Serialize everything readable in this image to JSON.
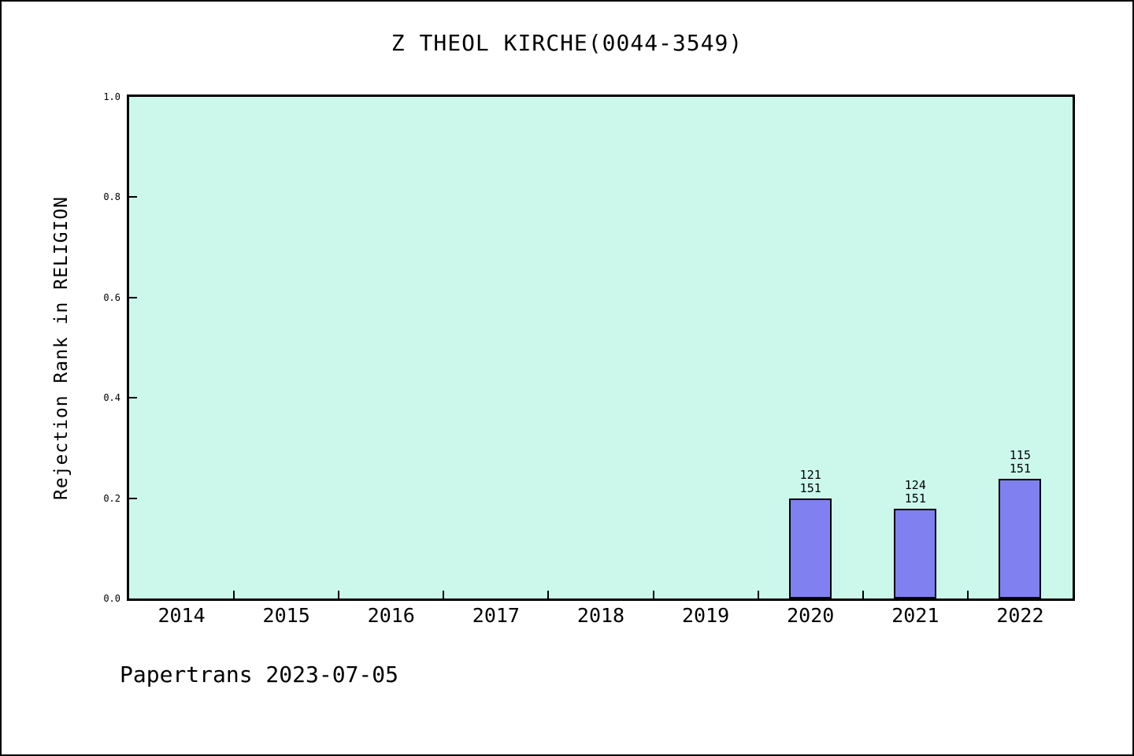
{
  "title": "Z THEOL KIRCHE(0044-3549)",
  "footer": "Papertrans 2023-07-05",
  "colors": {
    "page_background": "#ffffff",
    "page_border": "#000000",
    "plot_background": "#ccf8ec",
    "bar_fill": "#8080f0",
    "bar_edge": "#000000",
    "axis": "#000000",
    "text": "#000000"
  },
  "chart_data": {
    "type": "bar",
    "title": "Z THEOL KIRCHE(0044-3549)",
    "xlabel": "",
    "ylabel": "Rejection Rank in RELIGION",
    "ylim": [
      0.0,
      1.0
    ],
    "grid": false,
    "legend": null,
    "categories": [
      "2014",
      "2015",
      "2016",
      "2017",
      "2018",
      "2019",
      "2020",
      "2021",
      "2022"
    ],
    "values": [
      null,
      null,
      null,
      null,
      null,
      null,
      0.199,
      0.179,
      0.238
    ],
    "yticks": [
      {
        "label": "0.0",
        "value": 0.0
      },
      {
        "label": "0.2",
        "value": 0.2
      },
      {
        "label": "0.4",
        "value": 0.4
      },
      {
        "label": "0.6",
        "value": 0.6
      },
      {
        "label": "0.8",
        "value": 0.8
      },
      {
        "label": "1.0",
        "value": 1.0
      }
    ],
    "annotations": [
      {
        "category": "2020",
        "numerator": "121",
        "denominator": "151",
        "value": 0.199
      },
      {
        "category": "2021",
        "numerator": "124",
        "denominator": "151",
        "value": 0.179
      },
      {
        "category": "2022",
        "numerator": "115",
        "denominator": "151",
        "value": 0.238
      }
    ]
  }
}
